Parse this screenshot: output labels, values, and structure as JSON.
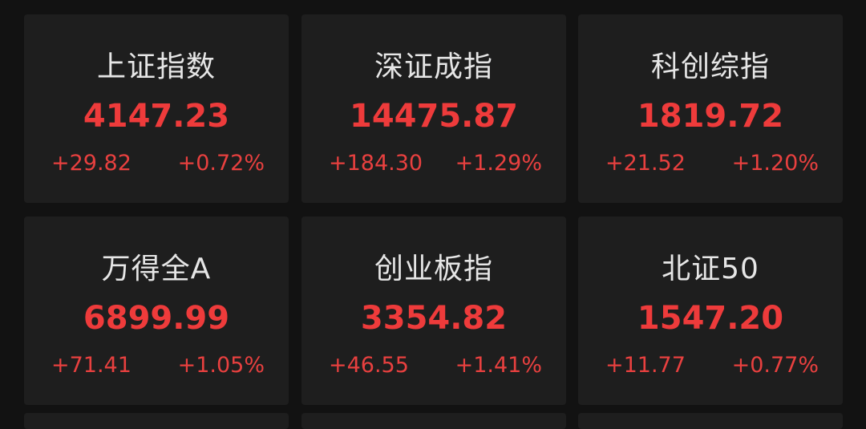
{
  "colors": {
    "up": "#ee3b3b",
    "background": "#121212",
    "card": "#1e1e1e",
    "label": "#e6e6e6"
  },
  "indices": [
    {
      "name": "上证指数",
      "price": "4147.23",
      "change": "+29.82",
      "percent": "+0.72%"
    },
    {
      "name": "深证成指",
      "price": "14475.87",
      "change": "+184.30",
      "percent": "+1.29%"
    },
    {
      "name": "科创综指",
      "price": "1819.72",
      "change": "+21.52",
      "percent": "+1.20%"
    },
    {
      "name": "万得全A",
      "price": "6899.99",
      "change": "+71.41",
      "percent": "+1.05%"
    },
    {
      "name": "创业板指",
      "price": "3354.82",
      "change": "+46.55",
      "percent": "+1.41%"
    },
    {
      "name": "北证50",
      "price": "1547.20",
      "change": "+11.77",
      "percent": "+0.77%"
    }
  ]
}
